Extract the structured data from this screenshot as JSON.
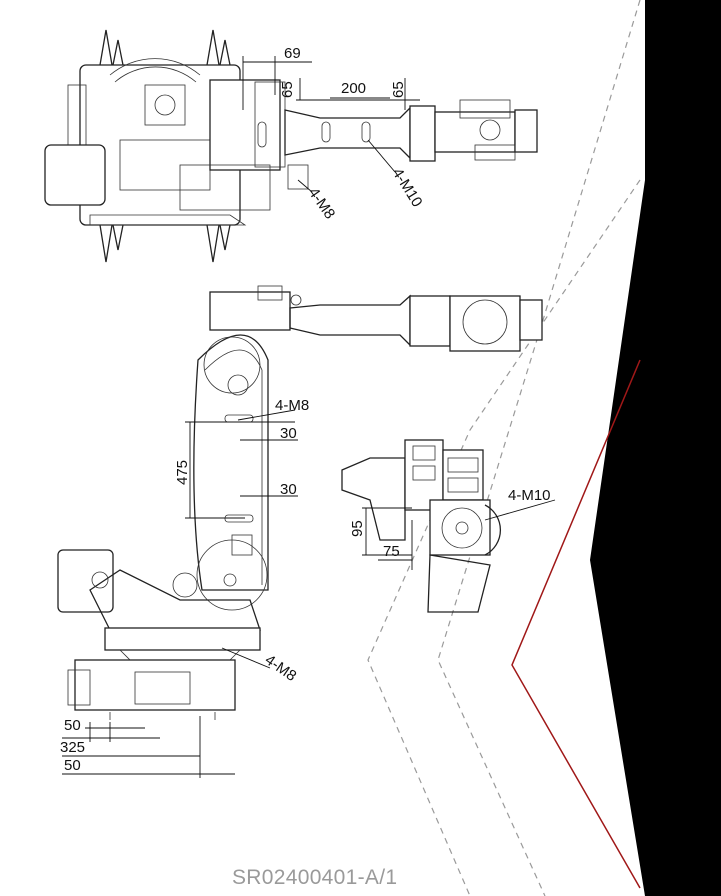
{
  "drawing": {
    "document_code": "SR02400401-A/1",
    "top_view": {
      "dims": [
        "69",
        "65",
        "200",
        "65"
      ],
      "threads": [
        "4-M10",
        "4-M8"
      ]
    },
    "side_view": {
      "dims": [
        "30",
        "475",
        "30"
      ],
      "threads": [
        "4-M8",
        "4-M8"
      ],
      "base_dims": [
        "50",
        "325",
        "50"
      ]
    },
    "wrist_view": {
      "dims": [
        "95",
        "75"
      ],
      "threads": [
        "4-M10"
      ]
    }
  },
  "colors": {
    "line": "#222222",
    "accent": "#a01818",
    "panel": "#000000",
    "divider": "#9a9a9a"
  }
}
